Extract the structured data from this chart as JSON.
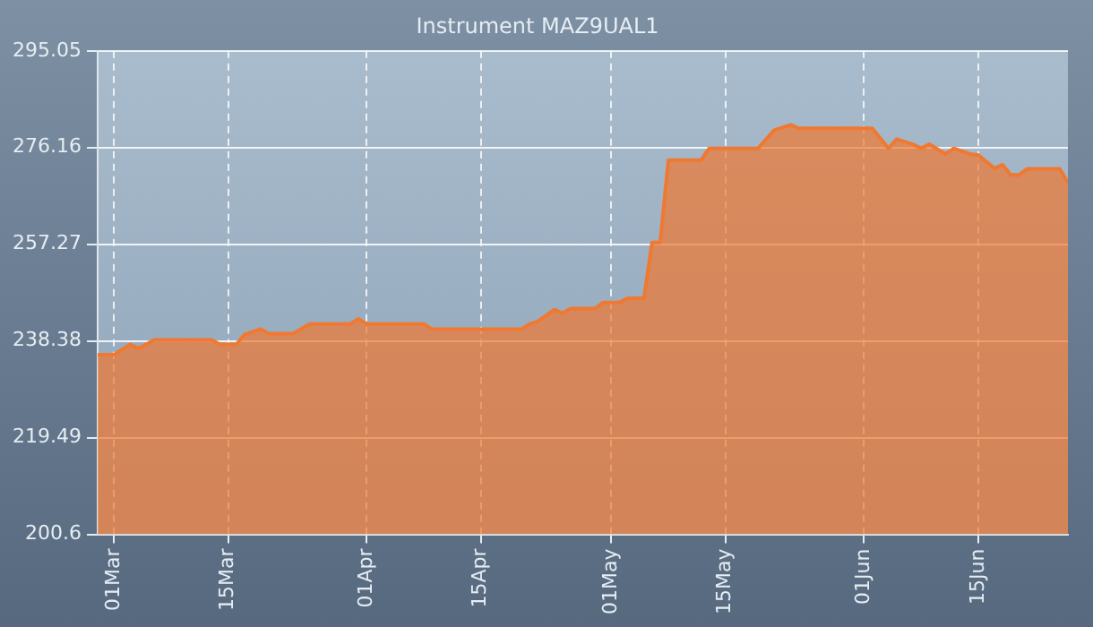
{
  "chart_data": {
    "type": "area",
    "title": "Instrument MAZ9UAL1",
    "x": [
      "--02-27",
      "--03-01",
      "--03-03",
      "--03-04",
      "--03-06",
      "--03-13",
      "--03-14",
      "--03-16",
      "--03-17",
      "--03-19",
      "--03-20",
      "--03-23",
      "--03-25",
      "--03-30",
      "--03-31",
      "--04-01",
      "--04-08",
      "--04-09",
      "--04-20",
      "--04-21",
      "--04-22",
      "--04-24",
      "--04-25",
      "--04-26",
      "--04-29",
      "--04-30",
      "--05-02",
      "--05-03",
      "--05-05",
      "--05-06",
      "--05-07",
      "--05-08",
      "--05-12",
      "--05-13",
      "--05-19",
      "--05-21",
      "--05-23",
      "--05-24",
      "--06-02",
      "--06-04",
      "--06-05",
      "--06-07",
      "--06-08",
      "--06-09",
      "--06-11",
      "--06-12",
      "--06-14",
      "--06-15",
      "--06-17",
      "--06-18",
      "--06-19",
      "--06-20",
      "--06-21",
      "--06-25",
      "--06-26"
    ],
    "series": [
      {
        "color": "#f07830",
        "values": [
          235.7,
          235.7,
          237.7,
          236.9,
          238.6,
          238.6,
          237.7,
          237.7,
          239.6,
          240.7,
          239.8,
          239.8,
          241.7,
          241.7,
          242.7,
          241.7,
          241.7,
          240.7,
          240.7,
          241.7,
          242.2,
          244.5,
          243.8,
          244.7,
          244.7,
          245.9,
          245.9,
          246.7,
          246.7,
          257.6,
          257.6,
          273.7,
          273.7,
          276.0,
          276.0,
          279.6,
          280.6,
          279.9,
          279.9,
          276.0,
          277.8,
          276.8,
          276.0,
          276.8,
          274.9,
          276.0,
          274.9,
          274.7,
          272.1,
          272.8,
          270.8,
          270.8,
          272.0,
          272.0,
          269.3
        ]
      }
    ],
    "xlim": [
      "--02-27",
      "--06-26"
    ],
    "xticks": [
      {
        "value": "--03-01",
        "label": "01Mar"
      },
      {
        "value": "--03-15",
        "label": "15Mar"
      },
      {
        "value": "--04-01",
        "label": "01Apr"
      },
      {
        "value": "--04-15",
        "label": "15Apr"
      },
      {
        "value": "--05-01",
        "label": "01May"
      },
      {
        "value": "--05-15",
        "label": "15May"
      },
      {
        "value": "--06-01",
        "label": "01Jun"
      },
      {
        "value": "--06-15",
        "label": "15Jun"
      }
    ],
    "ylim": [
      200.6,
      295.05
    ],
    "yticks": [
      200.6,
      219.49,
      238.38,
      257.27,
      276.16,
      295.05
    ],
    "grid": true
  }
}
